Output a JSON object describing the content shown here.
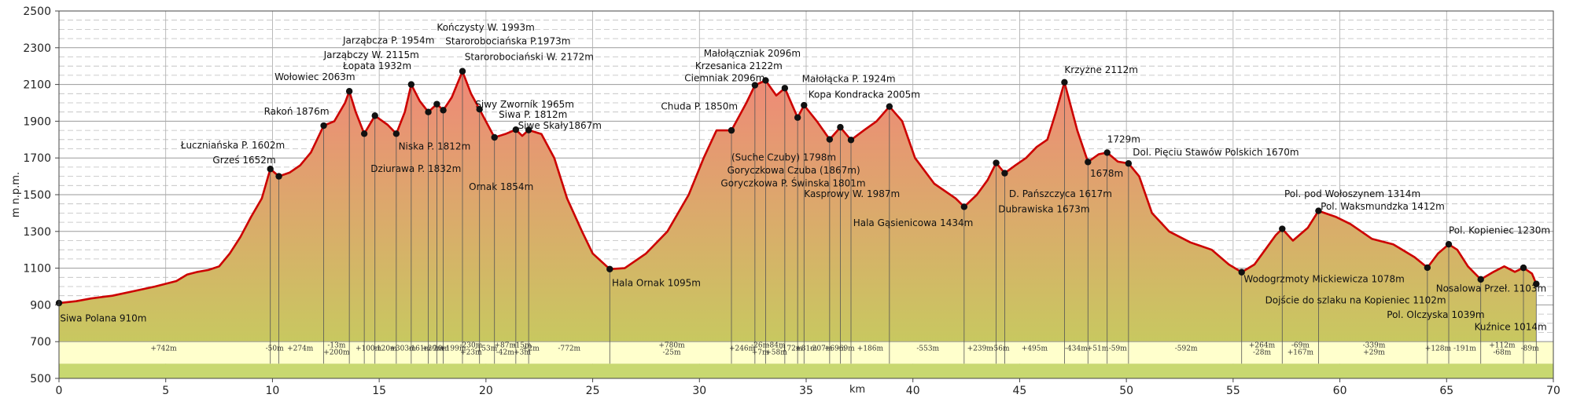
{
  "chart_data": {
    "type": "area",
    "xlabel": "km",
    "ylabel": "m n.p.m.",
    "xlim": [
      0,
      70
    ],
    "ylim": [
      500,
      2500
    ],
    "x_ticks": [
      0,
      5,
      10,
      15,
      20,
      25,
      30,
      35,
      40,
      45,
      50,
      55,
      60,
      65,
      70
    ],
    "y_ticks": [
      500,
      700,
      900,
      1100,
      1300,
      1500,
      1700,
      1900,
      2100,
      2300,
      2500
    ],
    "fill_top_color": "#f08878",
    "fill_bottom_color": "#c8c860",
    "line_color": "#cc0000",
    "band_color": "#ffffcc",
    "band_bottom_color": "#c8d870",
    "profile": [
      [
        0,
        910
      ],
      [
        0.8,
        920
      ],
      [
        1.5,
        935
      ],
      [
        2.5,
        950
      ],
      [
        3.5,
        975
      ],
      [
        4.5,
        1000
      ],
      [
        5.5,
        1030
      ],
      [
        6.0,
        1065
      ],
      [
        6.5,
        1080
      ],
      [
        7.0,
        1090
      ],
      [
        7.5,
        1110
      ],
      [
        8.0,
        1180
      ],
      [
        8.5,
        1270
      ],
      [
        9.0,
        1380
      ],
      [
        9.5,
        1480
      ],
      [
        9.9,
        1640
      ],
      [
        10.3,
        1600
      ],
      [
        10.8,
        1620
      ],
      [
        11.3,
        1660
      ],
      [
        11.8,
        1730
      ],
      [
        12.4,
        1876
      ],
      [
        12.9,
        1900
      ],
      [
        13.4,
        2000
      ],
      [
        13.6,
        2063
      ],
      [
        13.9,
        1950
      ],
      [
        14.3,
        1832
      ],
      [
        14.8,
        1930
      ],
      [
        15.4,
        1880
      ],
      [
        15.8,
        1832
      ],
      [
        16.2,
        1950
      ],
      [
        16.5,
        2100
      ],
      [
        16.9,
        2010
      ],
      [
        17.3,
        1950
      ],
      [
        17.7,
        1993
      ],
      [
        18.0,
        1960
      ],
      [
        18.4,
        2030
      ],
      [
        18.9,
        2172
      ],
      [
        19.3,
        2050
      ],
      [
        19.7,
        1965
      ],
      [
        20.4,
        1812
      ],
      [
        20.9,
        1830
      ],
      [
        21.4,
        1854
      ],
      [
        21.7,
        1820
      ],
      [
        22.0,
        1852
      ],
      [
        22.6,
        1830
      ],
      [
        23.2,
        1700
      ],
      [
        23.8,
        1480
      ],
      [
        24.5,
        1300
      ],
      [
        25.0,
        1180
      ],
      [
        25.8,
        1095
      ],
      [
        26.5,
        1100
      ],
      [
        27.5,
        1180
      ],
      [
        28.5,
        1300
      ],
      [
        29.5,
        1500
      ],
      [
        30.2,
        1700
      ],
      [
        30.8,
        1850
      ],
      [
        31.5,
        1850
      ],
      [
        32.2,
        2000
      ],
      [
        32.6,
        2096
      ],
      [
        33.1,
        2122
      ],
      [
        33.6,
        2040
      ],
      [
        34.0,
        2080
      ],
      [
        34.6,
        1920
      ],
      [
        34.9,
        1987
      ],
      [
        35.5,
        1900
      ],
      [
        36.1,
        1801
      ],
      [
        36.6,
        1867
      ],
      [
        37.1,
        1798
      ],
      [
        37.7,
        1850
      ],
      [
        38.3,
        1900
      ],
      [
        38.9,
        1980
      ],
      [
        39.5,
        1900
      ],
      [
        40.1,
        1700
      ],
      [
        41.0,
        1560
      ],
      [
        42.0,
        1480
      ],
      [
        42.4,
        1434
      ],
      [
        43.0,
        1500
      ],
      [
        43.5,
        1580
      ],
      [
        43.9,
        1673
      ],
      [
        44.3,
        1617
      ],
      [
        44.8,
        1660
      ],
      [
        45.3,
        1700
      ],
      [
        45.8,
        1760
      ],
      [
        46.3,
        1800
      ],
      [
        46.7,
        1950
      ],
      [
        47.1,
        2112
      ],
      [
        47.7,
        1850
      ],
      [
        48.2,
        1678
      ],
      [
        48.7,
        1720
      ],
      [
        49.1,
        1729
      ],
      [
        49.6,
        1680
      ],
      [
        50.1,
        1670
      ],
      [
        50.6,
        1600
      ],
      [
        51.2,
        1400
      ],
      [
        52.0,
        1300
      ],
      [
        53.0,
        1240
      ],
      [
        54.0,
        1200
      ],
      [
        54.8,
        1120
      ],
      [
        55.4,
        1078
      ],
      [
        56.0,
        1120
      ],
      [
        56.5,
        1200
      ],
      [
        57.0,
        1280
      ],
      [
        57.3,
        1314
      ],
      [
        57.8,
        1250
      ],
      [
        58.5,
        1320
      ],
      [
        59.0,
        1412
      ],
      [
        59.8,
        1380
      ],
      [
        60.5,
        1340
      ],
      [
        61.5,
        1260
      ],
      [
        62.5,
        1230
      ],
      [
        63.5,
        1160
      ],
      [
        64.1,
        1103
      ],
      [
        64.6,
        1180
      ],
      [
        65.1,
        1230
      ],
      [
        65.5,
        1200
      ],
      [
        66.0,
        1110
      ],
      [
        66.6,
        1039
      ],
      [
        67.2,
        1080
      ],
      [
        67.7,
        1110
      ],
      [
        68.2,
        1080
      ],
      [
        68.6,
        1102
      ],
      [
        69.0,
        1070
      ],
      [
        69.2,
        1014
      ]
    ],
    "waypoints": [
      {
        "x": 0,
        "y": 910
      },
      {
        "x": 9.9,
        "y": 1640
      },
      {
        "x": 10.3,
        "y": 1600
      },
      {
        "x": 12.4,
        "y": 1876
      },
      {
        "x": 13.6,
        "y": 2063
      },
      {
        "x": 14.3,
        "y": 1832
      },
      {
        "x": 14.8,
        "y": 1930
      },
      {
        "x": 15.8,
        "y": 1832
      },
      {
        "x": 16.5,
        "y": 2100
      },
      {
        "x": 17.3,
        "y": 1950
      },
      {
        "x": 17.7,
        "y": 1993
      },
      {
        "x": 18.0,
        "y": 1960
      },
      {
        "x": 18.9,
        "y": 2172
      },
      {
        "x": 19.7,
        "y": 1965
      },
      {
        "x": 20.4,
        "y": 1812
      },
      {
        "x": 21.4,
        "y": 1854
      },
      {
        "x": 22.0,
        "y": 1852
      },
      {
        "x": 25.8,
        "y": 1095
      },
      {
        "x": 31.5,
        "y": 1850
      },
      {
        "x": 32.6,
        "y": 2096
      },
      {
        "x": 33.1,
        "y": 2122
      },
      {
        "x": 34.0,
        "y": 2080
      },
      {
        "x": 34.6,
        "y": 1920
      },
      {
        "x": 34.9,
        "y": 1987
      },
      {
        "x": 36.1,
        "y": 1801
      },
      {
        "x": 36.6,
        "y": 1867
      },
      {
        "x": 37.1,
        "y": 1798
      },
      {
        "x": 38.9,
        "y": 1980
      },
      {
        "x": 42.4,
        "y": 1434
      },
      {
        "x": 43.9,
        "y": 1673
      },
      {
        "x": 44.3,
        "y": 1617
      },
      {
        "x": 47.1,
        "y": 2112
      },
      {
        "x": 48.2,
        "y": 1678
      },
      {
        "x": 49.1,
        "y": 1729
      },
      {
        "x": 50.1,
        "y": 1670
      },
      {
        "x": 55.4,
        "y": 1078
      },
      {
        "x": 57.3,
        "y": 1314
      },
      {
        "x": 59.0,
        "y": 1412
      },
      {
        "x": 64.1,
        "y": 1103
      },
      {
        "x": 65.1,
        "y": 1230
      },
      {
        "x": 66.6,
        "y": 1039
      },
      {
        "x": 68.6,
        "y": 1102
      },
      {
        "x": 69.2,
        "y": 1014
      }
    ],
    "annotations": [
      {
        "text": "Siwa Polana 910m",
        "x": 0.05,
        "y": 810
      },
      {
        "text": "Grześ 1652m",
        "x": 7.2,
        "y": 1672
      },
      {
        "text": "Łuczniańska P. 1602m",
        "x": 5.7,
        "y": 1752
      },
      {
        "text": "Rakoń 1876m",
        "x": 9.6,
        "y": 1935
      },
      {
        "text": "Wołowiec 2063m",
        "x": 10.1,
        "y": 2123
      },
      {
        "text": "Łopata 1932m",
        "x": 13.3,
        "y": 2183
      },
      {
        "text": "Jarząbczy W. 2115m",
        "x": 12.4,
        "y": 2243
      },
      {
        "text": "Jarząbcza P. 1954m",
        "x": 13.3,
        "y": 2323
      },
      {
        "text": "Niska P. 1812m",
        "x": 15.9,
        "y": 1745
      },
      {
        "text": "Dziurawa P. 1832m",
        "x": 14.6,
        "y": 1625
      },
      {
        "text": "Kończysty W. 1993m",
        "x": 17.7,
        "y": 2393
      },
      {
        "text": "Starorobociańska P.1973m",
        "x": 18.1,
        "y": 2318
      },
      {
        "text": "Starorobociański W. 2172m",
        "x": 19.0,
        "y": 2233
      },
      {
        "text": "Siwy Zworník 1965m",
        "x": 19.5,
        "y": 1975
      },
      {
        "text": "Siwa P. 1812m",
        "x": 20.6,
        "y": 1918
      },
      {
        "text": "Siwe Skały1867m",
        "x": 21.5,
        "y": 1858
      },
      {
        "text": "Ornak 1854m",
        "x": 19.2,
        "y": 1525
      },
      {
        "text": "Hala Ornak 1095m",
        "x": 25.9,
        "y": 1003
      },
      {
        "text": "Małołączniak 2096m",
        "x": 30.2,
        "y": 2253
      },
      {
        "text": "Krzesanica 2122m",
        "x": 29.8,
        "y": 2183
      },
      {
        "text": "Ciemniak 2096m",
        "x": 29.3,
        "y": 2118
      },
      {
        "text": "Chuda P. 1850m",
        "x": 28.2,
        "y": 1963
      },
      {
        "text": "Małołącka P. 1924m",
        "x": 34.8,
        "y": 2113
      },
      {
        "text": "Kopa Kondracka 2005m",
        "x": 35.1,
        "y": 2028
      },
      {
        "text": "(Suche Czuby) 1798m",
        "x": 31.5,
        "y": 1685
      },
      {
        "text": "Goryczkowa Czuba (1867m)",
        "x": 31.3,
        "y": 1615
      },
      {
        "text": "Goryczkowa P. Świnska 1801m",
        "x": 31.0,
        "y": 1545
      },
      {
        "text": "Kasprowy W. 1987m",
        "x": 34.9,
        "y": 1488
      },
      {
        "text": "Hala Gąsienicowa 1434m",
        "x": 37.2,
        "y": 1328
      },
      {
        "text": "Krzyżne 2112m",
        "x": 47.1,
        "y": 2163
      },
      {
        "text": "1729m",
        "x": 49.1,
        "y": 1785
      },
      {
        "text": "Dol. Pięciu Stawów Polskich 1670m",
        "x": 50.3,
        "y": 1713
      },
      {
        "text": "1678m",
        "x": 48.3,
        "y": 1598
      },
      {
        "text": "D. Pańszczyca 1617m",
        "x": 44.5,
        "y": 1488
      },
      {
        "text": "Dubrawiska 1673m",
        "x": 44.0,
        "y": 1403
      },
      {
        "text": "Pol. pod Wołoszynem 1314m",
        "x": 57.4,
        "y": 1488
      },
      {
        "text": "Pol. Waksmundzka 1412m",
        "x": 59.1,
        "y": 1418
      },
      {
        "text": "Pol. Kopieniec 1230m",
        "x": 65.1,
        "y": 1288
      },
      {
        "text": "Wodogrzmoty Mickiewicza 1078m",
        "x": 55.5,
        "y": 1023
      },
      {
        "text": "Nosalowa Przeł. 1103m",
        "x": 64.5,
        "y": 973
      },
      {
        "text": "Dojście do szlaku na Kopieniec 1102m",
        "x": 56.5,
        "y": 908
      },
      {
        "text": "Pol. Olczyska 1039m",
        "x": 62.2,
        "y": 828
      },
      {
        "text": "Kuźnice 1014m",
        "x": 66.3,
        "y": 763
      }
    ],
    "segments": [
      {
        "x": 4.9,
        "line1": "+742m",
        "line2": ""
      },
      {
        "x": 10.1,
        "line1": "-50m",
        "line2": ""
      },
      {
        "x": 11.3,
        "line1": "+274m",
        "line2": ""
      },
      {
        "x": 13.0,
        "line1": "-13m",
        "line2": "+200m"
      },
      {
        "x": 14.5,
        "line1": "+100m",
        "line2": ""
      },
      {
        "x": 15.3,
        "line1": "-120m",
        "line2": ""
      },
      {
        "x": 16.1,
        "line1": "+303m",
        "line2": ""
      },
      {
        "x": 16.9,
        "line1": "-161m",
        "line2": ""
      },
      {
        "x": 17.5,
        "line1": "+29m",
        "line2": ""
      },
      {
        "x": 17.85,
        "line1": "-20m",
        "line2": ""
      },
      {
        "x": 18.45,
        "line1": "+199m",
        "line2": ""
      },
      {
        "x": 19.3,
        "line1": "-230m",
        "line2": "+23m"
      },
      {
        "x": 20.0,
        "line1": "-153m",
        "line2": ""
      },
      {
        "x": 20.9,
        "line1": "+87m",
        "line2": "-42m"
      },
      {
        "x": 21.7,
        "line1": "-15m",
        "line2": "+3m"
      },
      {
        "x": 22.1,
        "line1": "+2m",
        "line2": ""
      },
      {
        "x": 23.9,
        "line1": "-772m",
        "line2": ""
      },
      {
        "x": 28.7,
        "line1": "+780m",
        "line2": "-25m"
      },
      {
        "x": 32.0,
        "line1": "+246m",
        "line2": ""
      },
      {
        "x": 32.85,
        "line1": "-26m",
        "line2": "+7m"
      },
      {
        "x": 33.6,
        "line1": "-84m",
        "line2": "+58m"
      },
      {
        "x": 34.3,
        "line1": "-172m",
        "line2": ""
      },
      {
        "x": 35.0,
        "line1": "+81m",
        "line2": ""
      },
      {
        "x": 35.7,
        "line1": "-207m",
        "line2": ""
      },
      {
        "x": 36.35,
        "line1": "+69m",
        "line2": ""
      },
      {
        "x": 36.85,
        "line1": "-69m",
        "line2": ""
      },
      {
        "x": 38.0,
        "line1": "+186m",
        "line2": ""
      },
      {
        "x": 40.7,
        "line1": "-553m",
        "line2": ""
      },
      {
        "x": 43.15,
        "line1": "+239m",
        "line2": ""
      },
      {
        "x": 44.1,
        "line1": "-56m",
        "line2": ""
      },
      {
        "x": 45.7,
        "line1": "+495m",
        "line2": ""
      },
      {
        "x": 47.65,
        "line1": "-434m",
        "line2": ""
      },
      {
        "x": 48.65,
        "line1": "+51m",
        "line2": ""
      },
      {
        "x": 49.6,
        "line1": "-59m",
        "line2": ""
      },
      {
        "x": 52.8,
        "line1": "-592m",
        "line2": ""
      },
      {
        "x": 56.35,
        "line1": "+264m",
        "line2": "-28m"
      },
      {
        "x": 58.15,
        "line1": "-69m",
        "line2": "+167m"
      },
      {
        "x": 61.6,
        "line1": "-339m",
        "line2": "+29m"
      },
      {
        "x": 64.6,
        "line1": "+128m",
        "line2": ""
      },
      {
        "x": 65.85,
        "line1": "-191m",
        "line2": ""
      },
      {
        "x": 67.6,
        "line1": "+112m",
        "line2": "-68m"
      },
      {
        "x": 68.9,
        "line1": "-89m",
        "line2": ""
      }
    ]
  }
}
